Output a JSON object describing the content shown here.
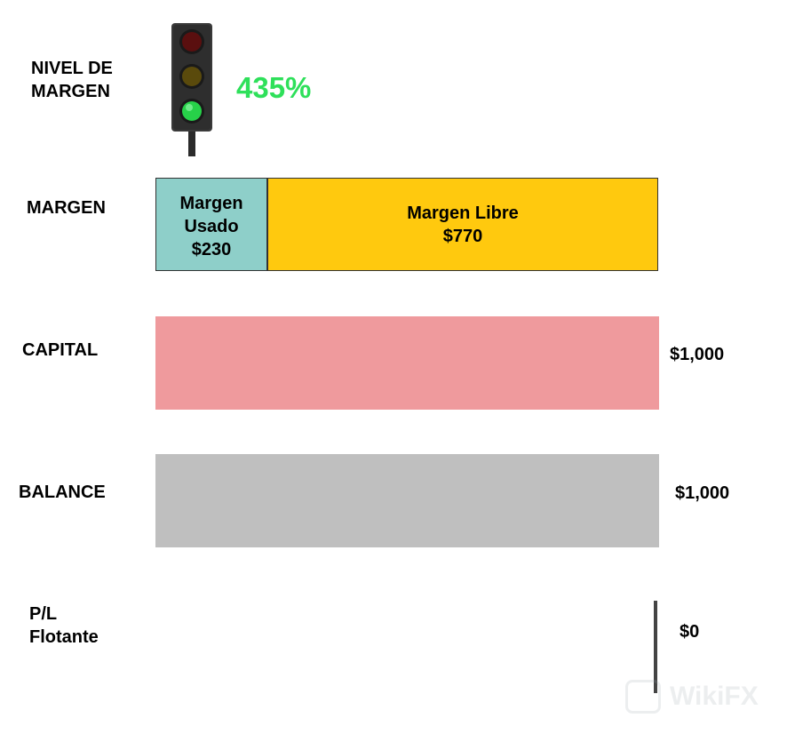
{
  "colors": {
    "level_value": "#2ee05a",
    "used_margin": "#8ecfc9",
    "free_margin": "#ffc90e",
    "capital_bar": "#ef9a9d",
    "balance_bar": "#bfbfbf",
    "pl_line": "#444444"
  },
  "level": {
    "label": "NIVEL DE\nMARGEN",
    "value": "435%",
    "light_icon": "traffic-light-green"
  },
  "margin": {
    "label": "MARGEN",
    "used": {
      "text": "Margen\nUsado\n$230",
      "amount": 230
    },
    "free": {
      "text": "Margen Libre\n$770",
      "amount": 770
    }
  },
  "capital": {
    "label": "CAPITAL",
    "value": "$1,000",
    "amount": 1000
  },
  "balance": {
    "label": "BALANCE",
    "value": "$1,000",
    "amount": 1000
  },
  "pl": {
    "label": "P/L\nFlotante",
    "value": "$0",
    "amount": 0
  },
  "watermark": {
    "text": "WikiFX"
  }
}
